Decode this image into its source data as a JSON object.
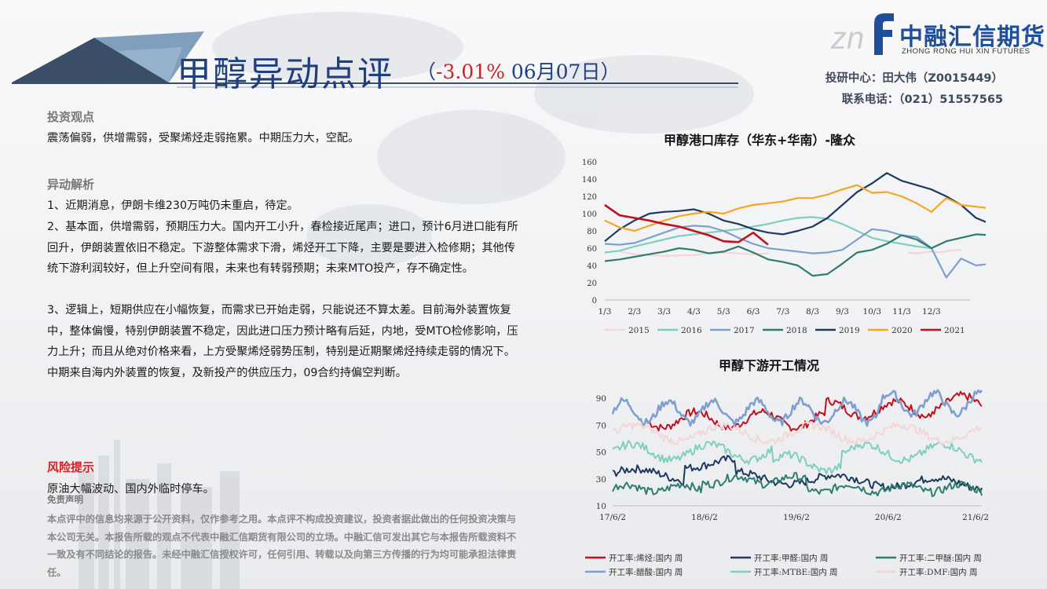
{
  "header": {
    "title": "甲醇异动点评",
    "paren_open": "（",
    "change": "-3.01%",
    "date": "06月07日",
    "paren_close": "）"
  },
  "logo": {
    "mark": "znf",
    "name": "中融汇信期货",
    "english": "ZHONG RONG HUI XIN FUTURES"
  },
  "contact": {
    "center": "投研中心：田大伟（Z0015449）",
    "phone": "联系电话：（021）51557565"
  },
  "viewpoint": {
    "heading": "投资观点",
    "text": "震荡偏弱，供增需弱，受聚烯烃走弱拖累。中期压力大，空配。"
  },
  "analysis": {
    "heading": "异动解析",
    "p1": "1、近期消息，伊朗卡维230万吨仍未重启，待定。",
    "p2": "2、基本面，供增需弱，预期压力大。国内开工小升，春检接近尾声；进口，预计6月进口能有所回升，伊朗装置依旧不稳定。下游整体需求下滑，烯烃开工下降，主要是要进入检修期；其他传统下游利润较好，但上升空间有限，未来也有转弱预期；未来MTO投产，存不确定性。",
    "p3": "3、逻辑上，短期供应在小幅恢复，而需求已开始走弱，只能说还不算太差。目前海外装置恢复中，整体偏慢，特别伊朗装置不稳定，因此进口压力预计略有后延，内地，受MTO检修影响，压力上升；而且从绝对价格来看，上方受聚烯烃弱势压制，特别是近期聚烯烃持续走弱的情况下。中期来自海内外装置的恢复，及新投产的供应压力，09合约持偏空判断。"
  },
  "risk": {
    "heading": "风险提示",
    "text": "原油大幅波动、国内外临时停车。"
  },
  "disclaimer": {
    "heading": "免责声明",
    "text": "本点评中的信息均来源于公开资料，仅作参考之用。本点评不构成投资建议，投资者据此做出的任何投资决策与本公司无关。本报告所载的观点不代表中融汇信期货有限公司的立场。中融汇信可发出其它与本报告所载资料不一致及有不同结论的报告。未经中融汇信授权许可，任何引用、转载以及向第三方传播的行为均可能承担法律责任。"
  },
  "chart_data": [
    {
      "type": "line",
      "title": "甲醇港口库存（华东+华南）-隆众",
      "categories": [
        "1/3",
        "2/3",
        "3/3",
        "4/3",
        "5/3",
        "6/3",
        "7/3",
        "8/3",
        "9/3",
        "10/3",
        "11/3",
        "12/3"
      ],
      "yticks": [
        0,
        20,
        40,
        60,
        80,
        100,
        120,
        140,
        160
      ],
      "ylim": [
        0,
        160
      ],
      "legend_position": "bottom",
      "series": [
        {
          "name": "2015",
          "color": "#f5d5d5",
          "x": [
            0.5,
            1,
            2,
            3,
            3.5,
            4,
            5,
            5.5
          ],
          "y": [
            56,
            53,
            51,
            52,
            54,
            55,
            53,
            54
          ],
          "tail_x": [
            10.2,
            10.5,
            11,
            11.3,
            11.6,
            12
          ],
          "tail_y": [
            55,
            54,
            56,
            55,
            57,
            58
          ]
        },
        {
          "name": "2016",
          "color": "#7fcfbf",
          "x": [
            0,
            0.5,
            1,
            1.5,
            2,
            2.5,
            3,
            3.5,
            4,
            4.5,
            5,
            5.5,
            6,
            6.5,
            7,
            7.5,
            8,
            8.5,
            9,
            9.5,
            10,
            10.5,
            11
          ],
          "y": [
            55,
            57,
            62,
            66,
            70,
            74,
            76,
            78,
            80,
            82,
            85,
            88,
            92,
            95,
            96,
            94,
            88,
            80,
            72,
            68,
            65,
            62,
            60
          ]
        },
        {
          "name": "2017",
          "color": "#7f9fcf",
          "x": [
            0,
            0.5,
            1,
            1.5,
            2,
            2.5,
            3,
            3.5,
            4,
            4.5,
            5,
            5.5,
            6,
            6.5,
            7,
            7.5,
            8,
            8.5,
            9,
            9.5,
            10,
            10.5,
            11,
            11.5,
            12,
            12.5,
            13
          ],
          "y": [
            65,
            64,
            66,
            72,
            78,
            84,
            86,
            85,
            80,
            72,
            65,
            60,
            58,
            56,
            54,
            55,
            58,
            70,
            82,
            80,
            75,
            73,
            60,
            26,
            48,
            40,
            42
          ]
        },
        {
          "name": "2018",
          "color": "#2e7d6e",
          "x": [
            0,
            0.5,
            1,
            1.5,
            2,
            2.5,
            3,
            3.5,
            4,
            4.5,
            5,
            5.5,
            6,
            6.5,
            7,
            7.5,
            8,
            8.5,
            9,
            9.5,
            10,
            10.5,
            11,
            11.5,
            12,
            12.5,
            13
          ],
          "y": [
            45,
            47,
            50,
            53,
            56,
            60,
            58,
            54,
            56,
            62,
            55,
            47,
            44,
            40,
            28,
            30,
            42,
            55,
            58,
            65,
            75,
            70,
            60,
            68,
            72,
            76,
            75
          ]
        },
        {
          "name": "2019",
          "color": "#1e3a5f",
          "x": [
            0,
            0.5,
            1,
            1.5,
            2,
            2.5,
            3,
            3.5,
            4,
            4.5,
            5,
            5.5,
            6,
            6.5,
            7,
            7.5,
            8,
            8.5,
            9,
            9.5,
            10,
            10.5,
            11,
            11.5,
            12,
            12.5,
            13
          ],
          "y": [
            68,
            82,
            92,
            100,
            102,
            103,
            105,
            100,
            92,
            88,
            82,
            78,
            76,
            80,
            85,
            95,
            110,
            125,
            135,
            147,
            138,
            133,
            128,
            120,
            110,
            95,
            88
          ]
        },
        {
          "name": "2020",
          "color": "#f5a623",
          "x": [
            0,
            0.5,
            1,
            1.5,
            2,
            2.5,
            3,
            3.5,
            4,
            4.5,
            5,
            5.5,
            6,
            6.5,
            7,
            7.5,
            8,
            8.5,
            9,
            9.5,
            10,
            10.5,
            11,
            11.5,
            12,
            12.5,
            13
          ],
          "y": [
            92,
            84,
            80,
            86,
            92,
            97,
            100,
            102,
            100,
            106,
            110,
            112,
            114,
            118,
            118,
            122,
            128,
            133,
            124,
            125,
            120,
            112,
            102,
            118,
            110,
            108,
            106
          ]
        },
        {
          "name": "2021",
          "color": "#c0111f",
          "x": [
            0,
            0.5,
            1,
            1.5,
            2,
            2.5,
            3,
            3.5,
            4,
            4.5,
            5,
            5.5
          ],
          "y": [
            110,
            98,
            95,
            92,
            88,
            85,
            80,
            75,
            68,
            67,
            78,
            64
          ]
        }
      ]
    },
    {
      "type": "line",
      "title": "甲醇下游开工情况",
      "categories": [
        "17/6/2",
        "18/6/2",
        "19/6/2",
        "20/6/2",
        "21/6/2"
      ],
      "yticks": [
        10,
        30,
        50,
        70,
        90
      ],
      "ylim": [
        10,
        100
      ],
      "legend_position": "bottom",
      "series": [
        {
          "name": "开工率:烯烃:国内 周",
          "color": "#c0111f",
          "style": "solid"
        },
        {
          "name": "开工率:甲醛:国内 周",
          "color": "#1e3a5f",
          "style": "solid"
        },
        {
          "name": "开工率:二甲醚:国内 周",
          "color": "#2e7d6e",
          "style": "solid"
        },
        {
          "name": "开工率:醋酸:国内 周",
          "color": "#7f9fcf",
          "style": "solid"
        },
        {
          "name": "开工率:MTBE:国内 周",
          "color": "#7fcfbf",
          "style": "solid"
        },
        {
          "name": "开工率:DMF:国内 周",
          "color": "#f5d5d5",
          "style": "solid"
        }
      ]
    }
  ]
}
